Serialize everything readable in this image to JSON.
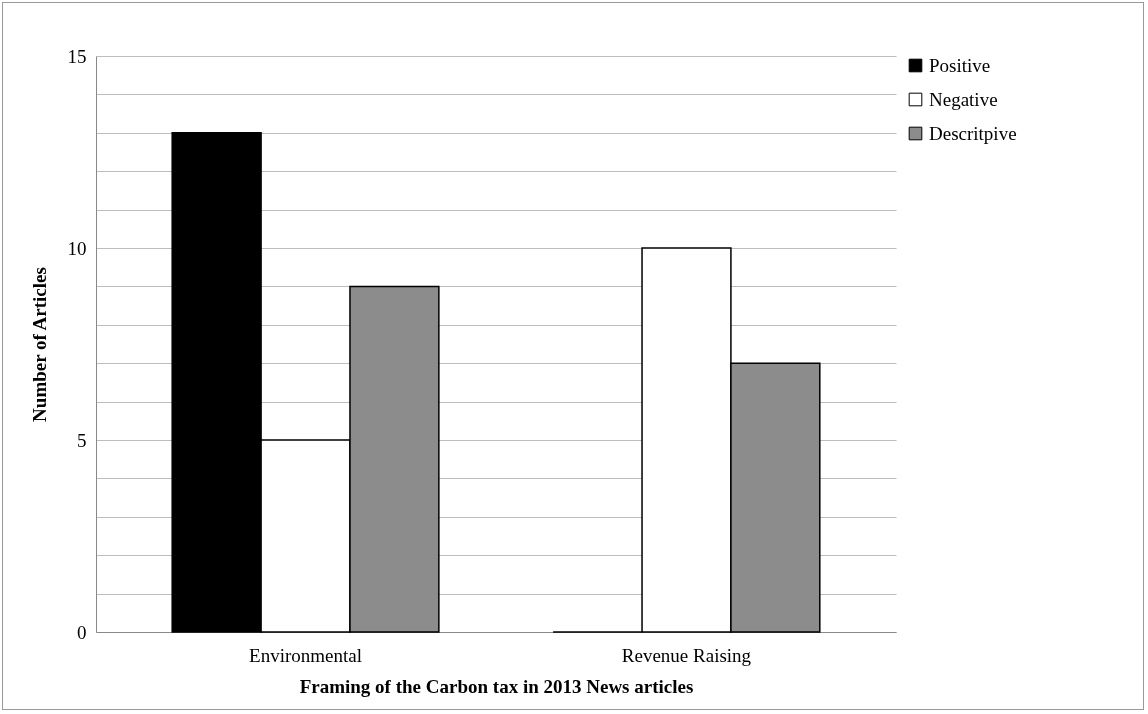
{
  "chart_data": {
    "type": "bar",
    "xlabel": "Framing of the Carbon tax in 2013 News articles",
    "ylabel": "Number of Articles",
    "categories": [
      "Environmental",
      "Revenue Raising"
    ],
    "series": [
      {
        "name": "Positive",
        "color": "#000000",
        "values": [
          13,
          0
        ]
      },
      {
        "name": "Negative",
        "color": "#ffffff",
        "values": [
          5,
          10
        ]
      },
      {
        "name": "Descritpive",
        "color": "#8c8c8c",
        "values": [
          9,
          7
        ]
      }
    ],
    "ylim": [
      0,
      15
    ],
    "yticks": [
      0,
      {
        "value": 1,
        "label": null
      },
      {
        "value": 2,
        "label": null
      },
      {
        "value": 3,
        "label": null
      },
      {
        "value": 4,
        "label": null
      },
      5,
      {
        "value": 6,
        "label": null
      },
      {
        "value": 7,
        "label": null
      },
      {
        "value": 8,
        "label": null
      },
      {
        "value": 9,
        "label": null
      },
      10,
      {
        "value": 11,
        "label": null
      },
      {
        "value": 12,
        "label": null
      },
      {
        "value": 13,
        "label": null
      },
      {
        "value": 14,
        "label": null
      },
      15
    ],
    "grid": "y",
    "legend": "right"
  }
}
